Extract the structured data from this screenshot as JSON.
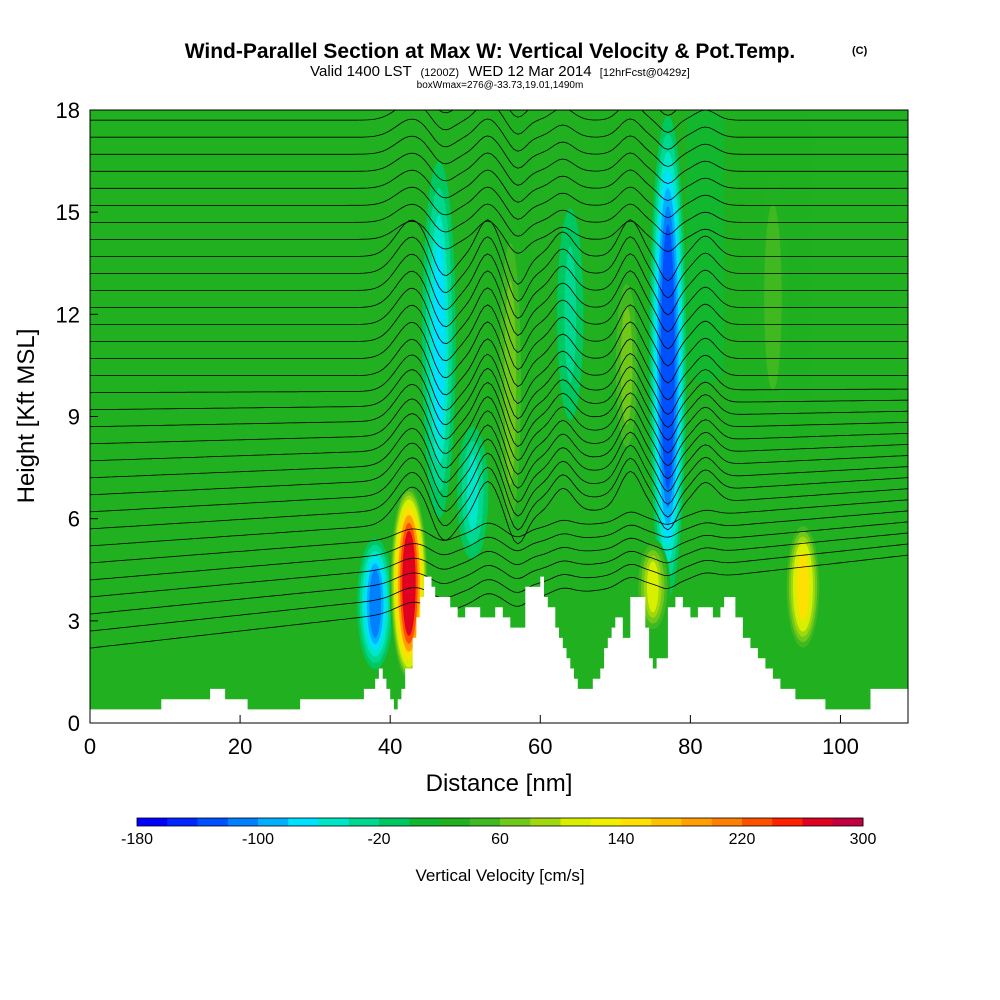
{
  "chart_data": {
    "type": "heatmap",
    "title": "Wind-Parallel Section at Max W: Vertical Velocity & Pot.Temp.",
    "copyright": "(C)",
    "subtitle_a": "Valid 1400 LST",
    "subtitle_b": "(1200Z)",
    "subtitle_c": "WED 12 Mar 2014",
    "subtitle_d": "[12hrFcst@0429z]",
    "info": "boxWmax=276@-33.73,19.01,1490m",
    "xlabel": "Distance [nm]",
    "ylabel": "Height [Kft MSL]",
    "xlim": [
      0,
      109
    ],
    "ylim": [
      0,
      18
    ],
    "xticks": [
      0,
      20,
      40,
      60,
      80,
      100
    ],
    "yticks": [
      0,
      3,
      6,
      9,
      12,
      15,
      18
    ],
    "colorbar": {
      "label": "Vertical Velocity [cm/s]",
      "min": -180,
      "max": 300,
      "step": 20,
      "tick_values": [
        -180,
        -100,
        -20,
        60,
        140,
        220,
        300
      ],
      "tick_labels": [
        "-180",
        "-100",
        "-20",
        "60",
        "140",
        "220",
        "300"
      ],
      "colors": [
        "#0000ff",
        "#0026ff",
        "#0050ff",
        "#0080ff",
        "#00b0ff",
        "#00e0ff",
        "#00e6c8",
        "#00d890",
        "#00c860",
        "#10b830",
        "#20b020",
        "#40b820",
        "#70c818",
        "#a0d810",
        "#d8f000",
        "#f0f000",
        "#ffe000",
        "#ffc000",
        "#ffa000",
        "#ff8000",
        "#ff5000",
        "#ff2000",
        "#e00020",
        "#c00040"
      ]
    },
    "terrain_profile": {
      "x": [
        0,
        5,
        9,
        9.5,
        14,
        16,
        16.5,
        18,
        18.5,
        21,
        21.5,
        28,
        28.5,
        36,
        36.5,
        38,
        38.5,
        39,
        39.5,
        40,
        40.5,
        41,
        41.5,
        42,
        43,
        43.5,
        44,
        44.5,
        45,
        45.5,
        46,
        47,
        48,
        48.5,
        49,
        49.5,
        50,
        51,
        52,
        53,
        54,
        55,
        56,
        56.5,
        58,
        60,
        60.5,
        61,
        62,
        62.5,
        63,
        63.5,
        64,
        64.5,
        65,
        66,
        67,
        68,
        68.5,
        69,
        69.5,
        70,
        70.5,
        71,
        72,
        73,
        74,
        74.5,
        75,
        75.5,
        77,
        78,
        79,
        80,
        80.5,
        81,
        82,
        83,
        84,
        84.5,
        86,
        87,
        88,
        89,
        90,
        91,
        92,
        93,
        94,
        95,
        96,
        98,
        100,
        103,
        104,
        106,
        109
      ],
      "height_kft": [
        0.4,
        0.4,
        0.4,
        0.7,
        0.7,
        1.0,
        1.0,
        0.7,
        0.7,
        0.4,
        0.4,
        0.7,
        0.7,
        0.7,
        1.0,
        1.3,
        1.6,
        1.3,
        1.0,
        0.7,
        0.4,
        0.7,
        1.0,
        1.6,
        2.5,
        3.1,
        3.7,
        4.3,
        4.3,
        4.0,
        3.7,
        3.7,
        3.4,
        3.4,
        3.1,
        3.1,
        3.4,
        3.4,
        3.1,
        3.1,
        3.4,
        3.1,
        2.8,
        2.8,
        4.0,
        4.3,
        3.7,
        3.4,
        2.8,
        2.5,
        2.2,
        1.9,
        1.6,
        1.3,
        1.0,
        1.0,
        1.3,
        1.6,
        2.2,
        2.5,
        2.8,
        3.1,
        3.1,
        2.5,
        3.7,
        3.7,
        2.8,
        1.9,
        1.6,
        1.9,
        3.4,
        3.7,
        3.4,
        3.1,
        3.1,
        3.4,
        3.4,
        3.1,
        3.4,
        3.7,
        3.1,
        2.5,
        2.2,
        1.9,
        1.6,
        1.3,
        1.0,
        1.0,
        0.7,
        0.7,
        0.7,
        0.4,
        0.4,
        0.4,
        1.0,
        1.0,
        1.0
      ]
    },
    "updraft_cores": [
      {
        "x": 42.5,
        "z_bottom": 1.2,
        "z_top": 7.0,
        "w_max": 276
      },
      {
        "x": 95,
        "z_bottom": 2.0,
        "z_top": 6.0,
        "w_max": 140
      },
      {
        "x": 75,
        "z_bottom": 2.5,
        "z_top": 5.5,
        "w_max": 100
      },
      {
        "x": 56,
        "z_bottom": 4.0,
        "z_top": 16.0,
        "w_max": 60
      },
      {
        "x": 71.5,
        "z_bottom": 7.0,
        "z_top": 14.0,
        "w_max": 60
      },
      {
        "x": 91,
        "z_bottom": 8.0,
        "z_top": 17.0,
        "w_max": 50
      }
    ],
    "downdraft_cores": [
      {
        "x": 38,
        "z_bottom": 1.5,
        "z_top": 5.5,
        "w_min": -120
      },
      {
        "x": 46.5,
        "z_bottom": 5.5,
        "z_top": 17.0,
        "w_min": -80
      },
      {
        "x": 51,
        "z_bottom": 4.5,
        "z_top": 9.0,
        "w_min": -60
      },
      {
        "x": 77,
        "z_bottom": 3.5,
        "z_top": 18.0,
        "w_min": -150
      },
      {
        "x": 64,
        "z_bottom": 8.0,
        "z_top": 16.0,
        "w_min": -40
      }
    ],
    "isentrope_count": 34
  }
}
